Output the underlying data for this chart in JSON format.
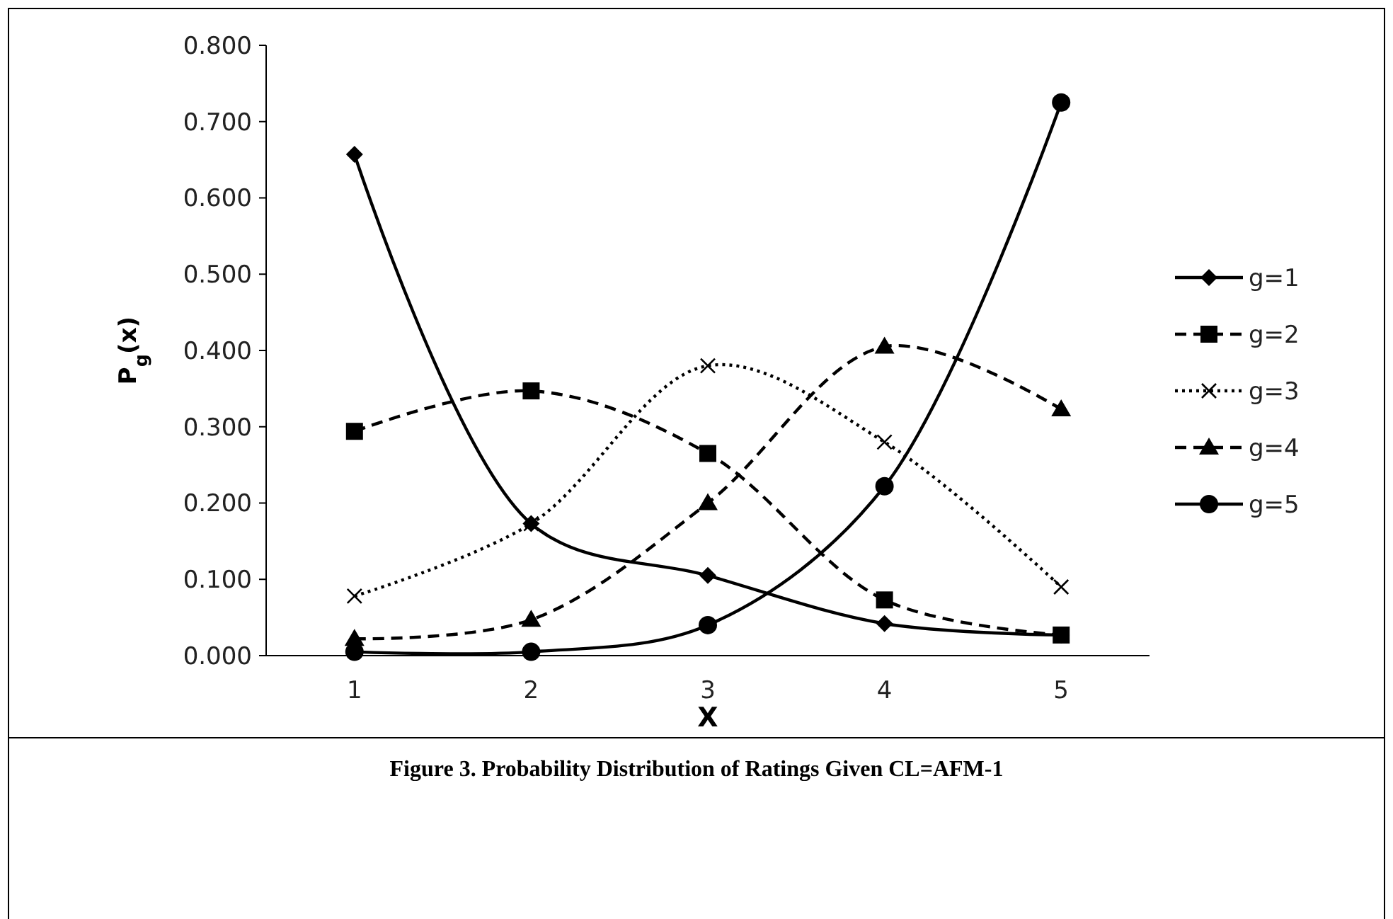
{
  "chart_data": {
    "type": "line",
    "xlabel": "X",
    "ylabel": "P$_{g}$(x)",
    "categories": [
      "1",
      "2",
      "3",
      "4",
      "5"
    ],
    "ylim": [
      0,
      0.8
    ],
    "yticks": [
      {
        "value": 0,
        "label": "0.000"
      },
      {
        "value": 0.1,
        "label": "0.100"
      },
      {
        "value": 0.2,
        "label": "0.200"
      },
      {
        "value": 0.3,
        "label": "0.300"
      },
      {
        "value": 0.4,
        "label": "0.400"
      },
      {
        "value": 0.5,
        "label": "0.500"
      },
      {
        "value": 0.6,
        "label": "0.600"
      },
      {
        "value": 0.7,
        "label": "0.700"
      },
      {
        "value": 0.8,
        "label": "0.800"
      }
    ],
    "grid": false,
    "legend": "right",
    "annotations": [
      "Figure 3. Probability Distribution of Ratings Given CL=AFM-1"
    ],
    "series": [
      {
        "name": "g=1",
        "color": "#000000",
        "marker": "diamond",
        "line_style": "solid",
        "values": [
          0.657,
          0.173,
          0.105,
          0.042,
          0.027
        ]
      },
      {
        "name": "g=2",
        "color": "#000000",
        "marker": "square",
        "line_style": "dashed",
        "values": [
          0.294,
          0.347,
          0.265,
          0.073,
          0.027
        ]
      },
      {
        "name": "g=3",
        "color": "#000000",
        "marker": "cross",
        "line_style": "dotted",
        "values": [
          0.078,
          0.173,
          0.38,
          0.28,
          0.09
        ]
      },
      {
        "name": "g=4",
        "color": "#000000",
        "marker": "triangle",
        "line_style": "dashed",
        "values": [
          0.022,
          0.047,
          0.2,
          0.405,
          0.323
        ]
      },
      {
        "name": "g=5",
        "color": "#000000",
        "marker": "circle",
        "line_style": "solid",
        "values": [
          0.005,
          0.005,
          0.04,
          0.222,
          0.725
        ]
      }
    ]
  }
}
